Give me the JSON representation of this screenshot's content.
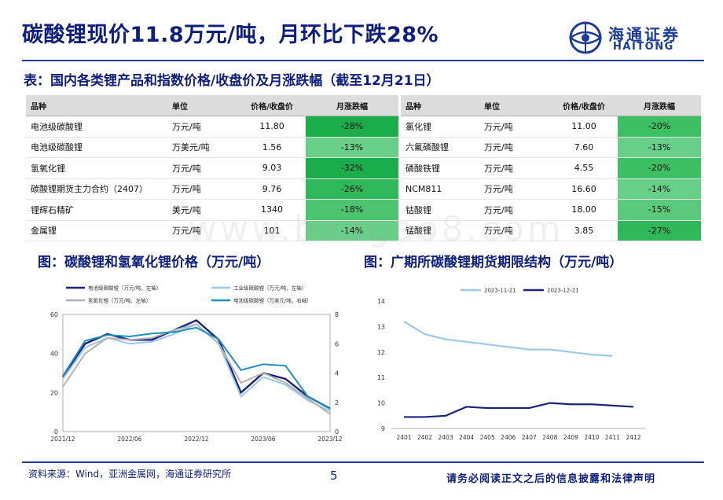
{
  "header": {
    "title": "碳酸锂现价11.8万元/吨，月环比下跌28%",
    "logo_cn": "海通证券",
    "logo_en": "HAITONG"
  },
  "colors": {
    "brand": "#1d3d93",
    "green_dark": "#1aad4a",
    "green_mid": "#3dbf63",
    "green_light": "#68cf88"
  },
  "table": {
    "caption": "表：国内各类锂产品和指数价格/收盘价及月涨跌幅（截至12月21日）",
    "headers": [
      "品种",
      "单位",
      "价格/收盘价",
      "月涨跌幅"
    ],
    "left": [
      {
        "name": "电池级碳酸锂",
        "unit": "万元/吨",
        "price": "11.80",
        "change": "-28%"
      },
      {
        "name": "电池级碳酸锂",
        "unit": "万美元/吨",
        "price": "1.56",
        "change": "-13%"
      },
      {
        "name": "氢氧化锂",
        "unit": "万元/吨",
        "price": "9.03",
        "change": "-32%"
      },
      {
        "name": "碳酸锂期货主力合约（2407）",
        "unit": "万元/吨",
        "price": "9.76",
        "change": "-26%"
      },
      {
        "name": "锂辉石精矿",
        "unit": "美元/吨",
        "price": "1340",
        "change": "-18%"
      },
      {
        "name": "金属锂",
        "unit": "万元/吨",
        "price": "101",
        "change": "-14%"
      }
    ],
    "right": [
      {
        "name": "氯化锂",
        "unit": "万元/吨",
        "price": "11.00",
        "change": "-20%"
      },
      {
        "name": "六氟磷酸锂",
        "unit": "万元/吨",
        "price": "7.60",
        "change": "-13%"
      },
      {
        "name": "磷酸铁锂",
        "unit": "万元/吨",
        "price": "4.55",
        "change": "-20%"
      },
      {
        "name": "NCM811",
        "unit": "万元/吨",
        "price": "16.60",
        "change": "-14%"
      },
      {
        "name": "钴酸锂",
        "unit": "万元/吨",
        "price": "18.00",
        "change": "-15%"
      },
      {
        "name": "锰酸锂",
        "unit": "万元/吨",
        "price": "3.85",
        "change": "-27%"
      }
    ]
  },
  "chart_titles": {
    "left": "图：碳酸锂和氢氧化锂价格（万元/吨）",
    "right": "图：广期所碳酸锂期货期限结构（万元/吨）"
  },
  "chart_data": [
    {
      "type": "line",
      "x": [
        "2021/12",
        "2022/02",
        "2022/04",
        "2022/06",
        "2022/08",
        "2022/10",
        "2022/12",
        "2023/02",
        "2023/04",
        "2023/06",
        "2023/08",
        "2023/10",
        "2023/12"
      ],
      "x_ticks": [
        "2021/12",
        "2022/06",
        "2022/12",
        "2023/06",
        "2023/12"
      ],
      "ylim_left": [
        0,
        60
      ],
      "y_ticks_left": [
        "0",
        "20",
        "40",
        "60"
      ],
      "ylim_right": [
        0,
        8
      ],
      "y_ticks_right": [
        "0",
        "2",
        "4",
        "6",
        "8"
      ],
      "legend_position": "top",
      "series": [
        {
          "name": "电池级碳酸锂（万元/吨，左轴）",
          "axis": "left",
          "color": "#1a237e",
          "values": [
            28,
            45,
            50,
            47,
            47,
            52,
            57,
            47,
            20,
            30,
            27,
            18,
            11.8
          ]
        },
        {
          "name": "工业级碳酸锂（万元/吨，左轴）",
          "axis": "left",
          "color": "#9cc8ea",
          "values": [
            27,
            43,
            48,
            45,
            46,
            50,
            55,
            45,
            18,
            28,
            24,
            16,
            10.5
          ]
        },
        {
          "name": "氢氧化锂（万元/吨，左轴）",
          "axis": "left",
          "color": "#b3b3b3",
          "values": [
            23,
            40,
            48,
            47,
            48,
            52,
            55,
            45,
            25,
            30,
            25,
            17,
            9.0
          ]
        },
        {
          "name": "电池级碳酸锂（万美元/吨，右轴）",
          "axis": "right",
          "color": "#1e90c0",
          "values": [
            3.8,
            6.2,
            6.6,
            6.5,
            6.7,
            6.8,
            7.1,
            6.3,
            4.2,
            4.6,
            4.5,
            2.4,
            1.56
          ]
        }
      ]
    },
    {
      "type": "line",
      "x": [
        "2401",
        "2402",
        "2403",
        "2404",
        "2405",
        "2406",
        "2407",
        "2408",
        "2409",
        "2410",
        "2411",
        "2412"
      ],
      "ylim": [
        9,
        14
      ],
      "y_ticks": [
        "9",
        "10",
        "11",
        "12",
        "13",
        "14"
      ],
      "legend_position": "top",
      "series": [
        {
          "name": "2023-11-21",
          "color": "#9cc8ea",
          "values": [
            13.2,
            12.7,
            12.5,
            12.4,
            12.3,
            12.2,
            12.1,
            12.1,
            12.0,
            11.9,
            11.85,
            null
          ]
        },
        {
          "name": "2023-12-21",
          "color": "#1a237e",
          "values": [
            9.45,
            9.45,
            9.5,
            9.85,
            9.8,
            9.8,
            9.8,
            10.0,
            9.95,
            9.95,
            9.9,
            9.85
          ]
        }
      ]
    }
  ],
  "footer": {
    "source": "资料来源：Wind，亚洲金属网，海通证券研究所",
    "page": "5",
    "disclaimer": "请务必阅读正文之后的信息披露和法律声明"
  }
}
